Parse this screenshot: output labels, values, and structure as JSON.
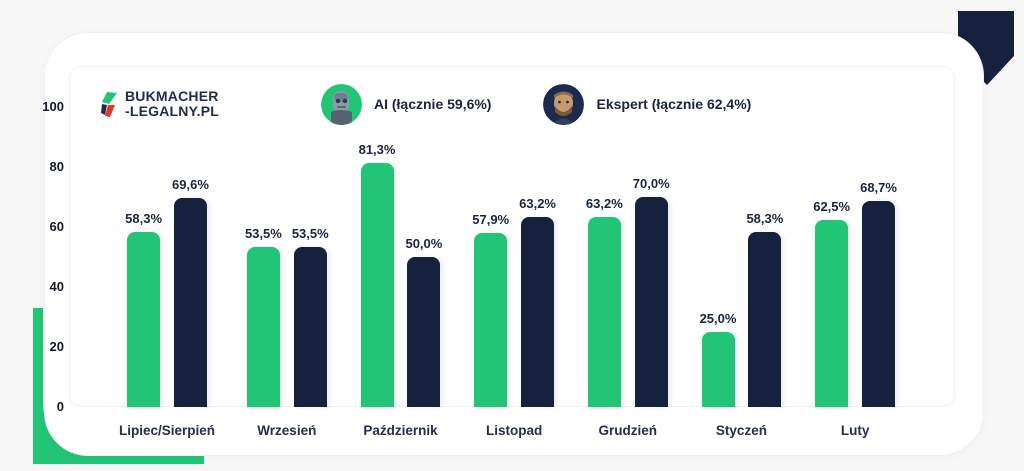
{
  "page": {
    "background": "#f7f7f8",
    "card_background": "#ffffff"
  },
  "brand": {
    "logo_line1": "BUKMACHER",
    "logo_line2": "-LEGALNY.PL",
    "logo_colors": {
      "green": "#22c576",
      "red": "#e5332a",
      "navy": "#232c4e"
    }
  },
  "legend": [
    {
      "name": "AI",
      "label": "AI (łącznie 59,6%)",
      "avatar": "robot-avatar",
      "color": "#22c576"
    },
    {
      "name": "Ekspert",
      "label": "Ekspert (łącznie 62,4%)",
      "avatar": "expert-photo-avatar",
      "color": "#16213d"
    }
  ],
  "colors": {
    "bar_green": "#22c576",
    "bar_navy": "#16213d",
    "text": "#1b2440",
    "corner_navy": "#16213d",
    "corner_green": "#22c576"
  },
  "chart_data": {
    "type": "bar",
    "categories": [
      "Lipiec/Sierpień",
      "Wrzesień",
      "Październik",
      "Listopad",
      "Grudzień",
      "Styczeń",
      "Luty"
    ],
    "series": [
      {
        "name": "AI (łącznie 59,6%)",
        "color": "#22c576",
        "values": [
          58.3,
          53.5,
          81.3,
          57.9,
          63.2,
          25.0,
          62.5
        ],
        "labels": [
          "58,3%",
          "53,5%",
          "81,3%",
          "57,9%",
          "63,2%",
          "25,0%",
          "62,5%"
        ]
      },
      {
        "name": "Ekspert (łącznie 62,4%)",
        "color": "#16213d",
        "values": [
          69.6,
          53.5,
          50.0,
          63.2,
          70.0,
          58.3,
          68.7
        ],
        "labels": [
          "69,6%",
          "53,5%",
          "50,0%",
          "63,2%",
          "70,0%",
          "58,3%",
          "68,7%"
        ]
      }
    ],
    "title": "",
    "xlabel": "",
    "ylabel": "",
    "ylim": [
      0,
      100
    ],
    "yticks": [
      0,
      20,
      40,
      60,
      80,
      100
    ],
    "grid": false,
    "legend_position": "top",
    "value_labels": true
  }
}
